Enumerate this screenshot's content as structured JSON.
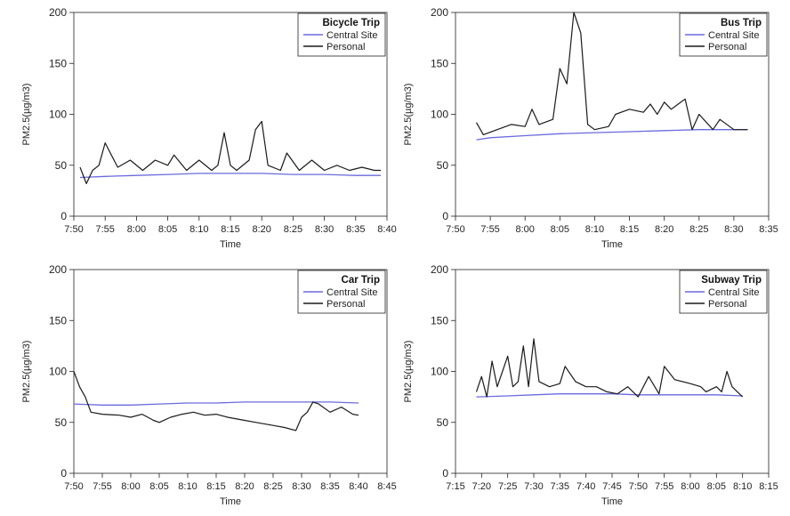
{
  "chart_data": [
    {
      "type": "line",
      "title": "Bicycle Trip",
      "xlabel": "Time",
      "ylabel": "PM2.5(µg/m3)",
      "ylim": [
        0,
        200
      ],
      "yticks": [
        0,
        50,
        100,
        150,
        200
      ],
      "xlim": [
        "7:50",
        "8:40"
      ],
      "xticks": [
        "7:50",
        "7:55",
        "8:00",
        "8:05",
        "8:10",
        "8:15",
        "8:20",
        "8:25",
        "8:30",
        "8:35",
        "8:40"
      ],
      "legend": "top-right",
      "series": [
        {
          "name": "Central Site",
          "color": "#6a6ade",
          "x": [
            "7:51",
            "7:55",
            "8:00",
            "8:05",
            "8:10",
            "8:15",
            "8:20",
            "8:25",
            "8:30",
            "8:35",
            "8:39"
          ],
          "y": [
            38,
            39,
            40,
            41,
            42,
            42,
            42,
            41,
            41,
            40,
            40
          ]
        },
        {
          "name": "Personal",
          "color": "#1a1a1a",
          "x": [
            "7:51",
            "7:52",
            "7:53",
            "7:54",
            "7:55",
            "7:57",
            "7:59",
            "8:01",
            "8:03",
            "8:05",
            "8:06",
            "8:08",
            "8:10",
            "8:12",
            "8:13",
            "8:14",
            "8:15",
            "8:16",
            "8:18",
            "8:19",
            "8:20",
            "8:21",
            "8:23",
            "8:24",
            "8:26",
            "8:28",
            "8:30",
            "8:32",
            "8:34",
            "8:36",
            "8:38",
            "8:39"
          ],
          "y": [
            48,
            32,
            45,
            50,
            72,
            48,
            55,
            45,
            55,
            50,
            60,
            45,
            55,
            45,
            50,
            82,
            50,
            45,
            55,
            85,
            93,
            50,
            45,
            62,
            45,
            55,
            45,
            50,
            45,
            48,
            45,
            45
          ]
        }
      ]
    },
    {
      "type": "line",
      "title": "Bus Trip",
      "xlabel": "Time",
      "ylabel": "PM2.5(µg/m3)",
      "ylim": [
        0,
        200
      ],
      "yticks": [
        0,
        50,
        100,
        150,
        200
      ],
      "xlim": [
        "7:50",
        "8:35"
      ],
      "xticks": [
        "7:50",
        "7:55",
        "8:00",
        "8:05",
        "8:10",
        "8:15",
        "8:20",
        "8:25",
        "8:30",
        "8:35"
      ],
      "legend": "top-right",
      "series": [
        {
          "name": "Central Site",
          "color": "#6a6ade",
          "x": [
            "7:53",
            "7:55",
            "8:00",
            "8:05",
            "8:10",
            "8:15",
            "8:20",
            "8:25",
            "8:30",
            "8:32"
          ],
          "y": [
            75,
            77,
            79,
            81,
            82,
            83,
            84,
            85,
            85,
            85
          ]
        },
        {
          "name": "Personal",
          "color": "#1a1a1a",
          "x": [
            "7:53",
            "7:54",
            "7:56",
            "7:58",
            "8:00",
            "8:01",
            "8:02",
            "8:04",
            "8:05",
            "8:06",
            "8:07",
            "8:08",
            "8:09",
            "8:10",
            "8:12",
            "8:13",
            "8:15",
            "8:17",
            "8:18",
            "8:19",
            "8:20",
            "8:21",
            "8:22",
            "8:23",
            "8:24",
            "8:25",
            "8:27",
            "8:28",
            "8:30",
            "8:32"
          ],
          "y": [
            92,
            80,
            85,
            90,
            88,
            105,
            90,
            95,
            145,
            130,
            200,
            180,
            90,
            85,
            88,
            100,
            105,
            102,
            110,
            100,
            112,
            105,
            110,
            115,
            85,
            100,
            85,
            95,
            85,
            85
          ]
        }
      ]
    },
    {
      "type": "line",
      "title": "Car Trip",
      "xlabel": "Time",
      "ylabel": "PM2.5(µg/m3)",
      "ylim": [
        0,
        200
      ],
      "yticks": [
        0,
        50,
        100,
        150,
        200
      ],
      "xlim": [
        "7:50",
        "8:45"
      ],
      "xticks": [
        "7:50",
        "7:55",
        "8:00",
        "8:05",
        "8:10",
        "8:15",
        "8:20",
        "8:25",
        "8:30",
        "8:35",
        "8:40",
        "8:45"
      ],
      "legend": "top-right",
      "series": [
        {
          "name": "Central Site",
          "color": "#6a6ade",
          "x": [
            "7:50",
            "7:55",
            "8:00",
            "8:05",
            "8:10",
            "8:15",
            "8:20",
            "8:25",
            "8:30",
            "8:35",
            "8:40"
          ],
          "y": [
            68,
            67,
            67,
            68,
            69,
            69,
            70,
            70,
            70,
            70,
            69
          ]
        },
        {
          "name": "Personal",
          "color": "#1a1a1a",
          "x": [
            "7:50",
            "7:51",
            "7:52",
            "7:53",
            "7:55",
            "7:58",
            "8:00",
            "8:02",
            "8:04",
            "8:05",
            "8:07",
            "8:09",
            "8:11",
            "8:13",
            "8:15",
            "8:17",
            "8:20",
            "8:22",
            "8:25",
            "8:27",
            "8:29",
            "8:30",
            "8:31",
            "8:32",
            "8:33",
            "8:35",
            "8:37",
            "8:39",
            "8:40"
          ],
          "y": [
            100,
            85,
            75,
            60,
            58,
            57,
            55,
            58,
            52,
            50,
            55,
            58,
            60,
            57,
            58,
            55,
            52,
            50,
            47,
            45,
            42,
            55,
            60,
            70,
            68,
            60,
            65,
            58,
            57
          ]
        }
      ]
    },
    {
      "type": "line",
      "title": "Subway Trip",
      "xlabel": "Time",
      "ylabel": "PM2.5(µg/m3)",
      "ylim": [
        0,
        200
      ],
      "yticks": [
        0,
        50,
        100,
        150,
        200
      ],
      "xlim": [
        "7:15",
        "8:15"
      ],
      "xticks": [
        "7:15",
        "7:20",
        "7:25",
        "7:30",
        "7:35",
        "7:40",
        "7:45",
        "7:50",
        "7:55",
        "8:00",
        "8:05",
        "8:10",
        "8:15"
      ],
      "legend": "top-right",
      "series": [
        {
          "name": "Central Site",
          "color": "#6a6ade",
          "x": [
            "7:19",
            "7:25",
            "7:30",
            "7:35",
            "7:40",
            "7:45",
            "7:50",
            "7:55",
            "8:00",
            "8:05",
            "8:10"
          ],
          "y": [
            75,
            76,
            77,
            78,
            78,
            78,
            77,
            77,
            77,
            77,
            76
          ]
        },
        {
          "name": "Personal",
          "color": "#1a1a1a",
          "x": [
            "7:19",
            "7:20",
            "7:21",
            "7:22",
            "7:23",
            "7:24",
            "7:25",
            "7:26",
            "7:27",
            "7:28",
            "7:29",
            "7:30",
            "7:31",
            "7:33",
            "7:35",
            "7:36",
            "7:38",
            "7:40",
            "7:42",
            "7:44",
            "7:46",
            "7:48",
            "7:50",
            "7:52",
            "7:54",
            "7:55",
            "7:57",
            "8:00",
            "8:02",
            "8:03",
            "8:05",
            "8:06",
            "8:07",
            "8:08",
            "8:09",
            "8:10"
          ],
          "y": [
            80,
            95,
            75,
            110,
            85,
            100,
            115,
            85,
            90,
            125,
            85,
            132,
            90,
            85,
            88,
            105,
            90,
            85,
            85,
            80,
            78,
            85,
            75,
            95,
            78,
            105,
            92,
            88,
            85,
            80,
            85,
            80,
            100,
            85,
            80,
            75
          ]
        }
      ]
    }
  ]
}
